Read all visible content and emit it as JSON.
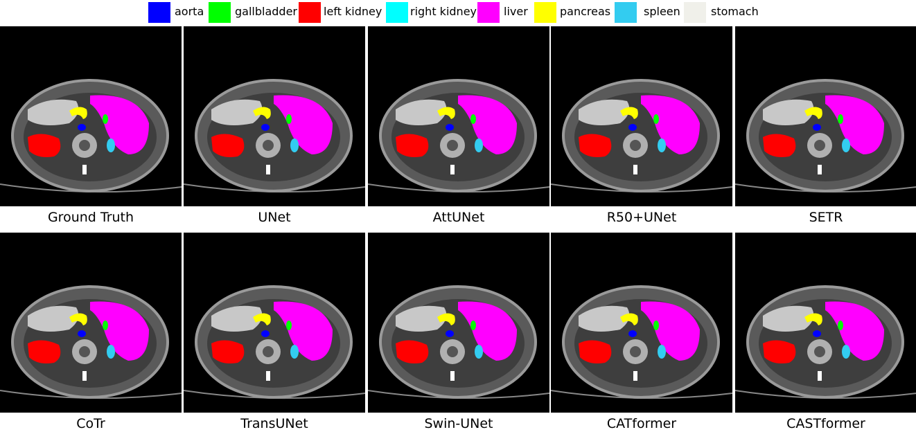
{
  "legend": [
    {
      "label": "aorta",
      "color": "#0000ff"
    },
    {
      "label": "gallbladder",
      "color": "#00ff00"
    },
    {
      "label": "left kidney",
      "color": "#ff0000"
    },
    {
      "label": "right kidney",
      "color": "#00ffff"
    },
    {
      "label": "liver",
      "color": "#ff00ff"
    },
    {
      "label": "pancreas",
      "color": "#ffff00"
    },
    {
      "label": "spleen",
      "color": "#33ccf0"
    },
    {
      "label": "stomach",
      "color": "#f0f0ea"
    }
  ],
  "panels": [
    {
      "caption": "Ground Truth"
    },
    {
      "caption": "UNet"
    },
    {
      "caption": "AttUNet"
    },
    {
      "caption": "R50+UNet"
    },
    {
      "caption": "SETR"
    },
    {
      "caption": "CoTr"
    },
    {
      "caption": "TransUNet"
    },
    {
      "caption": "Swin-UNet"
    },
    {
      "caption": "CATformer"
    },
    {
      "caption": "CASTformer"
    }
  ]
}
